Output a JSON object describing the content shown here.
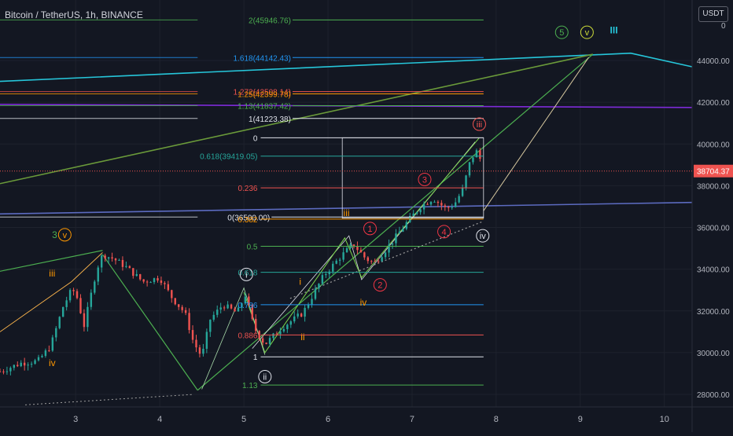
{
  "header": {
    "symbol_title": "Bitcoin / TetherUS, 1h, BINANCE",
    "currency_badge": "USDT"
  },
  "colors": {
    "background": "#131722",
    "axis_text": "#b2b5be",
    "grid": "#1e222d",
    "bull": "#26a69a",
    "bear": "#ef5350",
    "price_tag": "#ef5350",
    "green": "#4caf50",
    "lime": "#7bd64b",
    "cyan": "#26c6da",
    "orange": "#ff9800",
    "red": "#f23645",
    "yellow": "#e6c229",
    "white": "#e0e3eb",
    "blue": "#2962ff",
    "purple": "#7e2bd8"
  },
  "chart_data": {
    "type": "candlestick",
    "title": "Bitcoin / TetherUS, 1h, BINANCE",
    "x_axis": {
      "label": "",
      "ticks": [
        3,
        4,
        5,
        6,
        7,
        8,
        9,
        10
      ],
      "range": [
        2.1,
        10.33
      ]
    },
    "y_axis": {
      "label": "",
      "unit": "USDT",
      "side": "right",
      "ticks": [
        "28000.00",
        "30000.00",
        "32000.00",
        "34000.00",
        "36000.00",
        "38000.00",
        "40000.00",
        "42000.00",
        "44000.00"
      ],
      "top_partial_labels": [
        "4",
        "0"
      ],
      "range": [
        27400,
        46900
      ]
    },
    "last_price": "38704.37",
    "price_path": [
      [
        2.1,
        29100
      ],
      [
        2.35,
        29500
      ],
      [
        2.55,
        29600
      ],
      [
        2.7,
        30300
      ],
      [
        2.85,
        32200
      ],
      [
        2.95,
        33000
      ],
      [
        3.0,
        32900
      ],
      [
        3.1,
        31300
      ],
      [
        3.25,
        34000
      ],
      [
        3.32,
        34700
      ],
      [
        3.45,
        34500
      ],
      [
        3.6,
        34100
      ],
      [
        3.8,
        33400
      ],
      [
        4.0,
        33600
      ],
      [
        4.15,
        32600
      ],
      [
        4.3,
        31900
      ],
      [
        4.4,
        30500
      ],
      [
        4.5,
        29800
      ],
      [
        4.6,
        31600
      ],
      [
        4.75,
        32300
      ],
      [
        4.92,
        31900
      ],
      [
        5.02,
        32800
      ],
      [
        5.12,
        31200
      ],
      [
        5.25,
        30400
      ],
      [
        5.45,
        31200
      ],
      [
        5.7,
        31900
      ],
      [
        5.95,
        33700
      ],
      [
        6.15,
        34600
      ],
      [
        6.3,
        35200
      ],
      [
        6.45,
        34500
      ],
      [
        6.55,
        34300
      ],
      [
        6.7,
        35000
      ],
      [
        6.95,
        36300
      ],
      [
        7.1,
        37000
      ],
      [
        7.25,
        37400
      ],
      [
        7.4,
        36900
      ],
      [
        7.5,
        37100
      ],
      [
        7.6,
        37800
      ],
      [
        7.7,
        39300
      ],
      [
        7.78,
        39700
      ],
      [
        7.85,
        38700
      ]
    ],
    "fib_extension_levels": [
      {
        "label": "2(45946.76)",
        "value": 45946.76,
        "color": "#4caf50"
      },
      {
        "label": "1.618(44142.43)",
        "value": 44142.43,
        "color": "#2196f3"
      },
      {
        "label": "1.272(42508.14)",
        "value": 42508.14,
        "color": "#ef5350"
      },
      {
        "label": "1.25(42399.78)",
        "value": 42399.78,
        "color": "#ff9800"
      },
      {
        "label": "1.13(41837.42)",
        "value": 41837.42,
        "color": "#4caf50"
      },
      {
        "label": "1(41223.38)",
        "value": 41223.38,
        "color": "#e0e3eb"
      },
      {
        "label": "0(36500.00)",
        "value": 36500.0,
        "color": "#e0e3eb"
      }
    ],
    "fib_retracement_levels": [
      {
        "label": "0",
        "value": 40300,
        "color": "#e0e3eb"
      },
      {
        "label": "0.618(39419.05)",
        "value": 39419.05,
        "color": "#26a69a"
      },
      {
        "label": "0.236",
        "value": 37900,
        "color": "#ef5350"
      },
      {
        "label": "0.382",
        "value": 36400,
        "color": "#ff9800"
      },
      {
        "label": "0.5",
        "value": 35100,
        "color": "#4caf50"
      },
      {
        "label": "0.618",
        "value": 33850,
        "color": "#26a69a"
      },
      {
        "label": "0.786",
        "value": 32300,
        "color": "#2196f3"
      },
      {
        "label": "0.886",
        "value": 30850,
        "color": "#ef5350"
      },
      {
        "label": "1",
        "value": 29800,
        "color": "#e0e3eb"
      },
      {
        "label": "1.13",
        "value": 28450,
        "color": "#4caf50"
      }
    ],
    "wave_labels": [
      {
        "text": "5",
        "x": 8.78,
        "y": 45350,
        "color": "#4caf50",
        "circled": true
      },
      {
        "text": "v",
        "x": 9.08,
        "y": 45350,
        "color": "#cddc39",
        "circled": true
      },
      {
        "text": "III",
        "x": 9.4,
        "y": 45450,
        "color": "#26c6da",
        "circled": false
      },
      {
        "text": "iii",
        "x": 7.8,
        "y": 40950,
        "color": "#ef5350",
        "circled": true
      },
      {
        "text": "iv",
        "x": 7.84,
        "y": 35600,
        "color": "#e0e3eb",
        "circled": true
      },
      {
        "text": "3",
        "x": 2.75,
        "y": 35650,
        "color": "#4caf50",
        "circled": false
      },
      {
        "text": "v",
        "x": 2.87,
        "y": 35650,
        "color": "#ff9800",
        "circled": true
      },
      {
        "text": "iii",
        "x": 2.72,
        "y": 33800,
        "color": "#ff9800",
        "circled": false
      },
      {
        "text": "iv",
        "x": 2.72,
        "y": 29500,
        "color": "#ff9800",
        "circled": false
      },
      {
        "text": "i",
        "x": 5.03,
        "y": 33750,
        "color": "#e0e3eb",
        "circled": true
      },
      {
        "text": "ii",
        "x": 5.25,
        "y": 28850,
        "color": "#e0e3eb",
        "circled": true
      },
      {
        "text": "iii",
        "x": 6.22,
        "y": 36700,
        "color": "#ff9800",
        "circled": false
      },
      {
        "text": "i",
        "x": 5.67,
        "y": 33400,
        "color": "#ff9800",
        "circled": false
      },
      {
        "text": "ii",
        "x": 5.7,
        "y": 30750,
        "color": "#ff9800",
        "circled": false
      },
      {
        "text": "iv",
        "x": 6.42,
        "y": 32400,
        "color": "#ff9800",
        "circled": false
      },
      {
        "text": "1",
        "x": 6.5,
        "y": 35950,
        "color": "#f23645",
        "circled": true
      },
      {
        "text": "2",
        "x": 6.62,
        "y": 33250,
        "color": "#f23645",
        "circled": true
      },
      {
        "text": "3",
        "x": 7.15,
        "y": 38300,
        "color": "#f23645",
        "circled": true
      },
      {
        "text": "4",
        "x": 7.38,
        "y": 35800,
        "color": "#f23645",
        "circled": true
      }
    ]
  }
}
